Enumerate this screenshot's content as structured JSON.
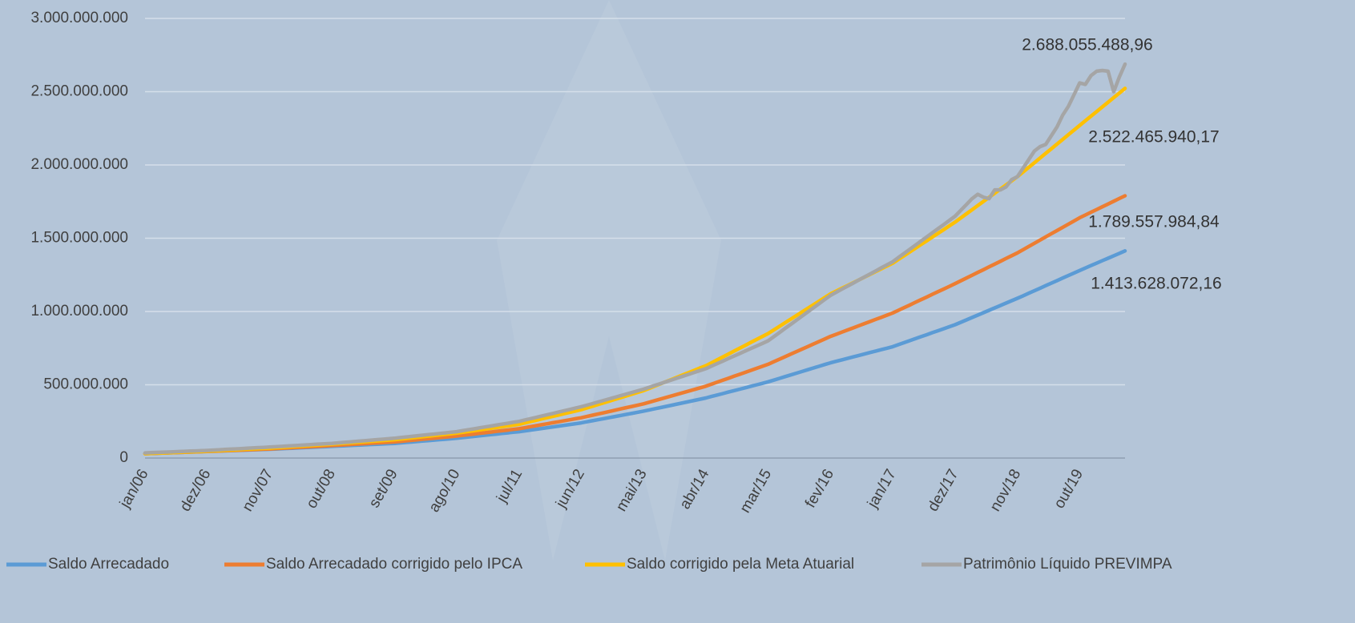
{
  "chart_data": {
    "type": "line",
    "categories": [
      "jan/06",
      null,
      null,
      null,
      null,
      null,
      null,
      null,
      null,
      null,
      null,
      "dez/06",
      null,
      null,
      null,
      null,
      null,
      null,
      null,
      null,
      null,
      null,
      "nov/07",
      null,
      null,
      null,
      null,
      null,
      null,
      null,
      null,
      null,
      null,
      "out/08",
      null,
      null,
      null,
      null,
      null,
      null,
      null,
      null,
      null,
      null,
      "set/09",
      null,
      null,
      null,
      null,
      null,
      null,
      null,
      null,
      null,
      null,
      "ago/10",
      null,
      null,
      null,
      null,
      null,
      null,
      null,
      null,
      null,
      null,
      "jul/11",
      null,
      null,
      null,
      null,
      null,
      null,
      null,
      null,
      null,
      null,
      "jun/12",
      null,
      null,
      null,
      null,
      null,
      null,
      null,
      null,
      null,
      null,
      "mai/13",
      null,
      null,
      null,
      null,
      null,
      null,
      null,
      null,
      null,
      null,
      "abr/14",
      null,
      null,
      null,
      null,
      null,
      null,
      null,
      null,
      null,
      null,
      "mar/15",
      null,
      null,
      null,
      null,
      null,
      null,
      null,
      null,
      null,
      null,
      "fev/16",
      null,
      null,
      null,
      null,
      null,
      null,
      null,
      null,
      null,
      null,
      "jan/17",
      null,
      null,
      null,
      null,
      null,
      null,
      null,
      null,
      null,
      null,
      "dez/17",
      null,
      null,
      null,
      null,
      null,
      null,
      null,
      null,
      null,
      null,
      "nov/18",
      null,
      null,
      null,
      null,
      null,
      null,
      null,
      null,
      null,
      null,
      "out/19",
      null,
      null,
      null,
      null,
      null,
      null,
      null,
      null
    ],
    "series": [
      {
        "name": "Saldo Arrecadado",
        "color": "#5b9bd5",
        "value_labels": {
          "173": "1.413.628.072,16"
        },
        "values": [
          30000000.0,
          31400000.0,
          32700000.0,
          34100000.0,
          35500000.0,
          36800000.0,
          38200000.0,
          39500000.0,
          40900000.0,
          42300000.0,
          43600000.0,
          45000000.0,
          46400000.0,
          47700000.0,
          49100000.0,
          50500000.0,
          51800000.0,
          53200000.0,
          54500000.0,
          55900000.0,
          57300000.0,
          58600000.0,
          60000000.0,
          61800000.0,
          63600000.0,
          65500000.0,
          67300000.0,
          69100000.0,
          70900000.0,
          72700000.0,
          74500000.0,
          76400000.0,
          78200000.0,
          80000000.0,
          81800000.0,
          83600000.0,
          85500000.0,
          87300000.0,
          89100000.0,
          90900000.0,
          92700000.0,
          94500000.0,
          96400000.0,
          98200000.0,
          100000000.0,
          103200000.0,
          106400000.0,
          109500000.0,
          112700000.0,
          115900000.0,
          119100000.0,
          122300000.0,
          125500000.0,
          128600000.0,
          131800000.0,
          135000000.0,
          139100000.0,
          143200000.0,
          147300000.0,
          151400000.0,
          155500000.0,
          159500000.0,
          163600000.0,
          167700000.0,
          171800000.0,
          175900000.0,
          180000000.0,
          185500000.0,
          190900000.0,
          196400000.0,
          201800000.0,
          207300000.0,
          212700000.0,
          218200000.0,
          223600000.0,
          229100000.0,
          234500000.0,
          240000000.0,
          247300000.0,
          254500000.0,
          261800000.0,
          269100000.0,
          276400000.0,
          283600000.0,
          290900000.0,
          298200000.0,
          305500000.0,
          312700000.0,
          320000000.0,
          328200000.0,
          336400000.0,
          344500000.0,
          352700000.0,
          360900000.0,
          369100000.0,
          377300000.0,
          385500000.0,
          393600000.0,
          401800000.0,
          410000000.0,
          420000000.0,
          430000000.0,
          440000000.0,
          450000000.0,
          460000000.0,
          470000000.0,
          480000000.0,
          490000000.0,
          500000000.0,
          510000000.0,
          520000000.0,
          531800000.0,
          543600000.0,
          555500000.0,
          567300000.0,
          579100000.0,
          590900000.0,
          602700000.0,
          614500000.0,
          626400000.0,
          638200000.0,
          650000000.0,
          660000000.0,
          670000000.0,
          680000000.0,
          690000000.0,
          700000000.0,
          710000000.0,
          720000000.0,
          730000000.0,
          740000000.0,
          750000000.0,
          760000000.0,
          773600000.0,
          787300000.0,
          800900000.0,
          814500000.0,
          828200000.0,
          841800000.0,
          855500000.0,
          869100000.0,
          882700000.0,
          896400000.0,
          910000000.0,
          926400000.0,
          942700000.0,
          959100000.0,
          975500000.0,
          991800000.0,
          1008200000.0,
          1024500000.0,
          1040900000.0,
          1057300000.0,
          1073600000.0,
          1090000000.0,
          1107300000.0,
          1124500000.0,
          1141800000.0,
          1159100000.0,
          1176400000.0,
          1193600000.0,
          1210900000.0,
          1228200000.0,
          1245500000.0,
          1262700000.0,
          1280000000.0,
          1296700000.0,
          1313400000.0,
          1330100000.0,
          1346800000.0,
          1363500000.0,
          1380200000.0,
          1396900000.0,
          1413628072.16
        ]
      },
      {
        "name": "Saldo Arrecadado corrigido pelo IPCA",
        "color": "#ed7d31",
        "value_labels": {
          "173": "1.789.557.984,84"
        },
        "values": [
          30000000.0,
          31400000.0,
          32700000.0,
          34100000.0,
          35500000.0,
          36800000.0,
          38200000.0,
          39500000.0,
          40900000.0,
          42300000.0,
          43600000.0,
          45000000.0,
          46500000.0,
          48100000.0,
          49600000.0,
          51200000.0,
          52700000.0,
          54300000.0,
          55800000.0,
          57400000.0,
          58900000.0,
          60500000.0,
          62000000.0,
          64100000.0,
          66200000.0,
          68300000.0,
          70400000.0,
          72500000.0,
          74500000.0,
          76600000.0,
          78700000.0,
          80800000.0,
          82900000.0,
          85000000.0,
          87300000.0,
          89500000.0,
          91800000.0,
          94100000.0,
          96400000.0,
          98600000.0,
          100900000.0,
          103200000.0,
          105500000.0,
          107700000.0,
          110000000.0,
          113600000.0,
          117300000.0,
          120900000.0,
          124500000.0,
          128200000.0,
          131800000.0,
          135500000.0,
          139100000.0,
          142700000.0,
          146400000.0,
          150000000.0,
          154500000.0,
          159100000.0,
          163600000.0,
          168200000.0,
          172700000.0,
          177300000.0,
          181800000.0,
          186400000.0,
          190900000.0,
          195500000.0,
          200000000.0,
          206800000.0,
          213600000.0,
          220500000.0,
          227300000.0,
          234100000.0,
          240900000.0,
          247700000.0,
          254500000.0,
          261400000.0,
          268200000.0,
          275000000.0,
          283600000.0,
          292300000.0,
          300900000.0,
          309500000.0,
          318200000.0,
          326800000.0,
          335500000.0,
          344100000.0,
          352700000.0,
          361400000.0,
          370000000.0,
          380900000.0,
          391800000.0,
          402700000.0,
          413600000.0,
          424500000.0,
          435500000.0,
          446400000.0,
          457300000.0,
          468200000.0,
          479100000.0,
          490000000.0,
          503600000.0,
          517300000.0,
          530900000.0,
          544500000.0,
          558200000.0,
          571800000.0,
          585500000.0,
          599100000.0,
          612700000.0,
          626400000.0,
          640000000.0,
          657300000.0,
          674500000.0,
          691800000.0,
          709100000.0,
          726400000.0,
          743600000.0,
          760900000.0,
          778200000.0,
          795500000.0,
          812700000.0,
          830000000.0,
          844500000.0,
          859100000.0,
          873600000.0,
          888200000.0,
          902700000.0,
          917300000.0,
          931800000.0,
          946400000.0,
          960900000.0,
          975500000.0,
          990000000.0,
          1008200000.0,
          1026400000.0,
          1044500000.0,
          1062700000.0,
          1080900000.0,
          1099100000.0,
          1117300000.0,
          1135500000.0,
          1153600000.0,
          1171800000.0,
          1190000000.0,
          1209100000.0,
          1228200000.0,
          1247300000.0,
          1266400000.0,
          1285500000.0,
          1304500000.0,
          1323600000.0,
          1342700000.0,
          1361800000.0,
          1380900000.0,
          1400000000.0,
          1421800000.0,
          1443600000.0,
          1465500000.0,
          1487300000.0,
          1509100000.0,
          1530900000.0,
          1552700000.0,
          1574500000.0,
          1596400000.0,
          1618200000.0,
          1640000000.0,
          1658700000.0,
          1677400000.0,
          1696100000.0,
          1714800000.0,
          1733500000.0,
          1752200000.0,
          1770900000.0,
          1789557984.84
        ]
      },
      {
        "name": "Saldo corrigido pela Meta Atuarial",
        "color": "#ffc000",
        "value_labels": {
          "173": "2.522.465.940,17"
        },
        "values": [
          30000000.0,
          31500000.0,
          33100000.0,
          34600000.0,
          36200000.0,
          37700000.0,
          39300000.0,
          40800000.0,
          42400000.0,
          43900000.0,
          45500000.0,
          47000000.0,
          48900000.0,
          50800000.0,
          52700000.0,
          54600000.0,
          56500000.0,
          58500000.0,
          60400000.0,
          62300000.0,
          64200000.0,
          66100000.0,
          68000000.0,
          70500000.0,
          72900000.0,
          75400000.0,
          77800000.0,
          80300000.0,
          82700000.0,
          85200000.0,
          87600000.0,
          90100000.0,
          92500000.0,
          95000000.0,
          97700000.0,
          100500000.0,
          103200000.0,
          105900000.0,
          108600000.0,
          111400000.0,
          114100000.0,
          116800000.0,
          119500000.0,
          122300000.0,
          125000000.0,
          129100000.0,
          133200000.0,
          137300000.0,
          141400000.0,
          145500000.0,
          149500000.0,
          153600000.0,
          157700000.0,
          161800000.0,
          165900000.0,
          170000000.0,
          175500000.0,
          180900000.0,
          186400000.0,
          191800000.0,
          197300000.0,
          202700000.0,
          208200000.0,
          213600000.0,
          219100000.0,
          224500000.0,
          230000000.0,
          239100000.0,
          248200000.0,
          257300000.0,
          266400000.0,
          275500000.0,
          284500000.0,
          293600000.0,
          302700000.0,
          311800000.0,
          320900000.0,
          330000000.0,
          341800000.0,
          353600000.0,
          365500000.0,
          377300000.0,
          389100000.0,
          400900000.0,
          412700000.0,
          424500000.0,
          436400000.0,
          448200000.0,
          460000000.0,
          475500000.0,
          490900000.0,
          506400000.0,
          521800000.0,
          537300000.0,
          552700000.0,
          568200000.0,
          583600000.0,
          599100000.0,
          614500000.0,
          630000000.0,
          650000000.0,
          670000000.0,
          690000000.0,
          710000000.0,
          730000000.0,
          750000000.0,
          770000000.0,
          790000000.0,
          810000000.0,
          830000000.0,
          850000000.0,
          874500000.0,
          899100000.0,
          923600000.0,
          948200000.0,
          972700000.0,
          997300000.0,
          1021800000.0,
          1046400000.0,
          1070900000.0,
          1095500000.0,
          1120000000.0,
          1139100000.0,
          1158200000.0,
          1177300000.0,
          1196400000.0,
          1215500000.0,
          1234500000.0,
          1253600000.0,
          1272700000.0,
          1291800000.0,
          1310900000.0,
          1330000000.0,
          1355500000.0,
          1380900000.0,
          1406400000.0,
          1431800000.0,
          1457300000.0,
          1482700000.0,
          1508200000.0,
          1533600000.0,
          1559100000.0,
          1584500000.0,
          1610000000.0,
          1638200000.0,
          1666400000.0,
          1694500000.0,
          1722700000.0,
          1750900000.0,
          1779100000.0,
          1807300000.0,
          1835500000.0,
          1863600000.0,
          1891800000.0,
          1920000000.0,
          1951800000.0,
          1983600000.0,
          2015500000.0,
          2047300000.0,
          2079100000.0,
          2110900000.0,
          2142700000.0,
          2174500000.0,
          2206400000.0,
          2238200000.0,
          2270000000.0,
          2301600000.0,
          2333100000.0,
          2364700000.0,
          2396200000.0,
          2427800000.0,
          2459300000.0,
          2490900000.0,
          2522465940.17
        ]
      },
      {
        "name": "Patrimônio Líquido PREVIMPA",
        "color": "#a5a5a5",
        "value_labels": {
          "173": "2.688.055.488,96"
        },
        "values": [
          35000000.0,
          36500000.0,
          38100000.0,
          39600000.0,
          41200000.0,
          42700000.0,
          44300000.0,
          45800000.0,
          47400000.0,
          48900000.0,
          50500000.0,
          52000000.0,
          54100000.0,
          56200000.0,
          58300000.0,
          60400000.0,
          62500000.0,
          64500000.0,
          66600000.0,
          68700000.0,
          70800000.0,
          72900000.0,
          75000000.0,
          77300000.0,
          79500000.0,
          81800000.0,
          84100000.0,
          86400000.0,
          88600000.0,
          90900000.0,
          93200000.0,
          95500000.0,
          97700000.0,
          100000000.0,
          103200000.0,
          106400000.0,
          109500000.0,
          112700000.0,
          115900000.0,
          119100000.0,
          122300000.0,
          125500000.0,
          128600000.0,
          131800000.0,
          135000000.0,
          139100000.0,
          143200000.0,
          147300000.0,
          151400000.0,
          155500000.0,
          159500000.0,
          163600000.0,
          167700000.0,
          171800000.0,
          175900000.0,
          180000000.0,
          186400000.0,
          192700000.0,
          199100000.0,
          205500000.0,
          211800000.0,
          218200000.0,
          224500000.0,
          230900000.0,
          237300000.0,
          243600000.0,
          250000000.0,
          259100000.0,
          268200000.0,
          277300000.0,
          286400000.0,
          295500000.0,
          304500000.0,
          313600000.0,
          322700000.0,
          331800000.0,
          340900000.0,
          350000000.0,
          360900000.0,
          371800000.0,
          382700000.0,
          393600000.0,
          404500000.0,
          415500000.0,
          426400000.0,
          437300000.0,
          448200000.0,
          459100000.0,
          470000000.0,
          482700000.0,
          495500000.0,
          508200000.0,
          520900000.0,
          533600000.0,
          546400000.0,
          559100000.0,
          571800000.0,
          584500000.0,
          597300000.0,
          610000000.0,
          627300000.0,
          644500000.0,
          661800000.0,
          679100000.0,
          696400000.0,
          713600000.0,
          730900000.0,
          748200000.0,
          765500000.0,
          782700000.0,
          800000000.0,
          828200000.0,
          856400000.0,
          884500000.0,
          912700000.0,
          940900000.0,
          969100000.0,
          997300000.0,
          1025500000.0,
          1053600000.0,
          1081800000.0,
          1110000000.0,
          1130900000.0,
          1151800000.0,
          1172700000.0,
          1193600000.0,
          1214500000.0,
          1235500000.0,
          1256400000.0,
          1277300000.0,
          1298200000.0,
          1319100000.0,
          1340000000.0,
          1368200000.0,
          1396400000.0,
          1424500000.0,
          1452700000.0,
          1480900000.0,
          1509100000.0,
          1537300000.0,
          1565500000.0,
          1593600000.0,
          1621800000.0,
          1650000000.0,
          1690000000.0,
          1730000000.0,
          1770000000.0,
          1800000000.0,
          1780000000.0,
          1770000000.0,
          1830000000.0,
          1830000000.0,
          1850000000.0,
          1900000000.0,
          1920000000.0,
          1978000000.0,
          2036000000.0,
          2095000000.0,
          2125000000.0,
          2140000000.0,
          2200000000.0,
          2260000000.0,
          2340000000.0,
          2400000000.0,
          2480000000.0,
          2560000000.0,
          2550000000.0,
          2610000000.0,
          2640000000.0,
          2645000000.0,
          2640000000.0,
          2500000000.0,
          2600000000.0,
          2688055488.96
        ]
      }
    ],
    "ylim": [
      0,
      3000000000
    ],
    "yticks": [
      0,
      {
        "value": 500000000,
        "label": "500.000.000"
      },
      {
        "value": 1000000000,
        "label": "1.000.000.000"
      },
      {
        "value": 1500000000,
        "label": "1.500.000.000"
      },
      {
        "value": 2000000000,
        "label": "2.000.000.000"
      },
      {
        "value": 2500000000,
        "label": "2.500.000.000"
      },
      {
        "value": 3000000000,
        "label": "3.000.000.000"
      }
    ],
    "grid": true,
    "legend": "bottom"
  }
}
